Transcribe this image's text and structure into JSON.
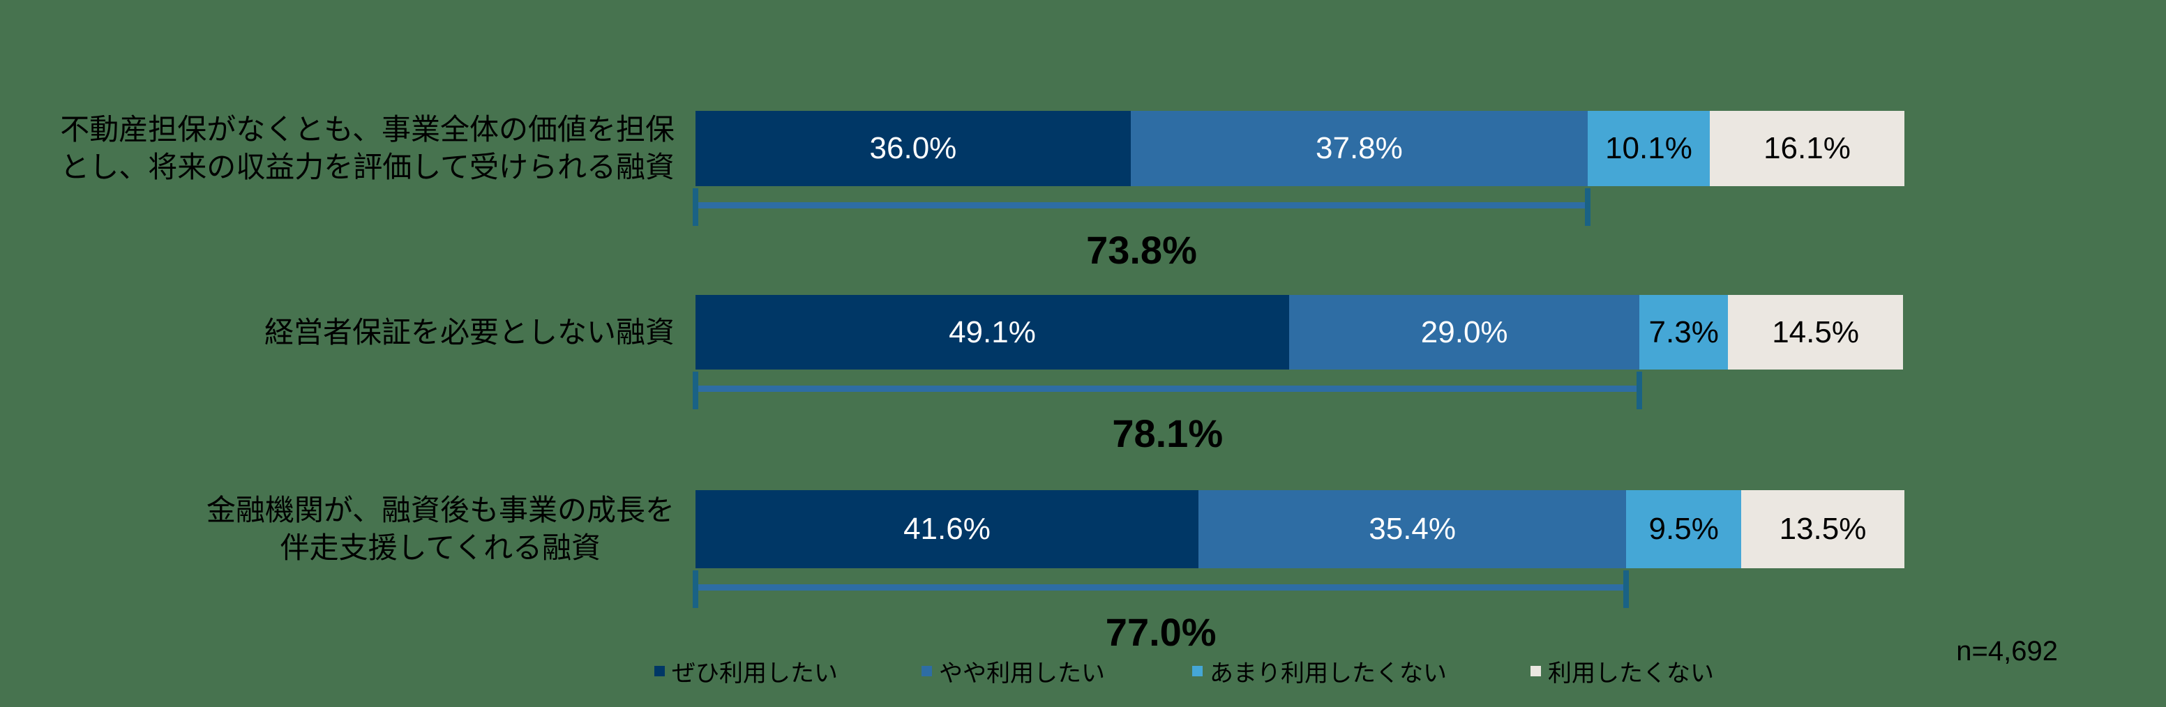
{
  "chart_data": {
    "type": "bar",
    "variant": "horizontal-stacked",
    "title": "",
    "categories": [
      "不動産担保がなくとも、事業全体の価値を担保\nとし、将来の収益力を評価して受けられる融資",
      "経営者保証を必要としない融資",
      "金融機関が、融資後も事業の成長を\n伴走支援してくれる融資"
    ],
    "series": [
      {
        "name": "ぜひ利用したい",
        "color": "#003766",
        "label_color": "#FFFFFF",
        "values": [
          36.0,
          49.1,
          41.6
        ]
      },
      {
        "name": "やや利用したい",
        "color": "#2E6DA4",
        "label_color": "#FFFFFF",
        "values": [
          37.8,
          29.0,
          35.4
        ]
      },
      {
        "name": "あまり利用したくない",
        "color": "#45A7D6",
        "label_color": "#000000",
        "values": [
          10.1,
          7.3,
          9.5
        ]
      },
      {
        "name": "利用したくない",
        "color": "#EBE7E1",
        "label_color": "#000000",
        "values": [
          16.1,
          14.5,
          13.5
        ]
      }
    ],
    "bracket_totals": {
      "description": "sum of first two series, shown under a bracket spanning them",
      "values": [
        73.8,
        78.1,
        77.0
      ],
      "labels": [
        "73.8%",
        "78.1%",
        "77.0%"
      ],
      "line_color": "#2E6DA4",
      "tick_color": "#1A6285"
    },
    "segment_labels": [
      [
        "36.0%",
        "37.8%",
        "10.1%",
        "16.1%"
      ],
      [
        "49.1%",
        "29.0%",
        "7.3%",
        "14.5%"
      ],
      [
        "41.6%",
        "35.4%",
        "9.5%",
        "13.5%"
      ]
    ],
    "xlim": [
      0,
      100
    ],
    "grid": false,
    "legend_position": "bottom",
    "background_color": "#47734F",
    "sample_label": "n=4,692"
  }
}
